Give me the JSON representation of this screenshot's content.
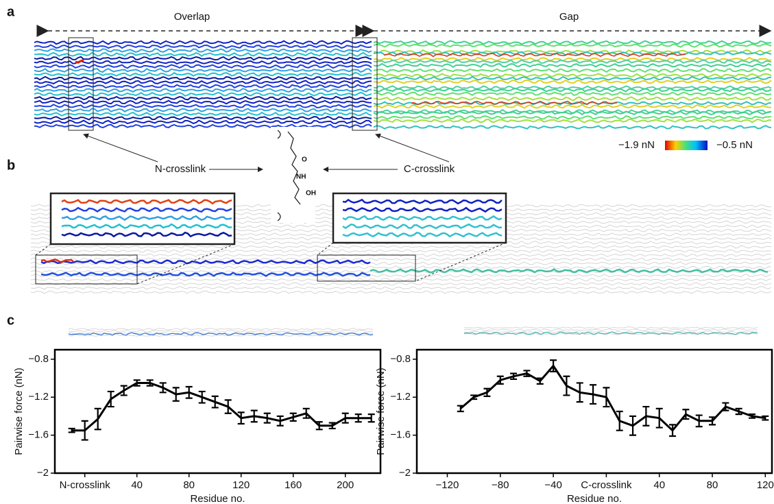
{
  "panels": {
    "a": "a",
    "b": "b",
    "c": "c"
  },
  "overlap": "Overlap",
  "gap": "Gap",
  "colorbar": {
    "min_label": "−1.9 nN",
    "max_label": "−0.5 nN"
  },
  "n_crosslink": "N-crosslink",
  "c_crosslink": "C-crosslink",
  "chemistry": {
    "o": "O",
    "nh": "NH",
    "oh": "OH"
  },
  "chart_data": [
    {
      "type": "line",
      "color": "#000000",
      "x": [
        -10,
        0,
        10,
        20,
        30,
        40,
        50,
        60,
        70,
        80,
        90,
        100,
        110,
        120,
        130,
        140,
        150,
        160,
        170,
        180,
        190,
        200,
        210,
        220
      ],
      "values": [
        -1.55,
        -1.55,
        -1.43,
        -1.22,
        -1.13,
        -1.05,
        -1.05,
        -1.1,
        -1.17,
        -1.15,
        -1.2,
        -1.25,
        -1.3,
        -1.42,
        -1.4,
        -1.42,
        -1.45,
        -1.41,
        -1.37,
        -1.5,
        -1.5,
        -1.42,
        -1.42,
        -1.42
      ],
      "errors": [
        0.02,
        0.1,
        0.11,
        0.08,
        0.05,
        0.03,
        0.03,
        0.05,
        0.07,
        0.06,
        0.06,
        0.06,
        0.07,
        0.06,
        0.06,
        0.05,
        0.05,
        0.04,
        0.05,
        0.04,
        0.03,
        0.05,
        0.04,
        0.04
      ],
      "xlim": [
        -23,
        227
      ],
      "ylim": [
        -2,
        -0.7
      ],
      "xticks": [
        {
          "value": 0,
          "label": "N-crosslink"
        },
        40,
        80,
        120,
        160,
        200
      ],
      "yticks": [
        {
          "value": -0.8,
          "label": "−0.8"
        },
        {
          "value": -1.2,
          "label": "−1.2"
        },
        {
          "value": -1.6,
          "label": "−1.6"
        },
        {
          "value": -2,
          "label": "−2"
        }
      ],
      "xlabel": "Residue no.",
      "ylabel": "Pairwise force (nN)"
    },
    {
      "type": "line",
      "color": "#000000",
      "x": [
        -110,
        -100,
        -90,
        -80,
        -70,
        -60,
        -50,
        -40,
        -30,
        -20,
        -10,
        0,
        10,
        20,
        30,
        40,
        50,
        60,
        70,
        80,
        90,
        100,
        110,
        120
      ],
      "values": [
        -1.32,
        -1.2,
        -1.15,
        -1.02,
        -0.98,
        -0.95,
        -1.03,
        -0.87,
        -1.08,
        -1.15,
        -1.17,
        -1.2,
        -1.45,
        -1.5,
        -1.4,
        -1.42,
        -1.55,
        -1.38,
        -1.45,
        -1.45,
        -1.3,
        -1.35,
        -1.4,
        -1.42
      ],
      "errors": [
        0.03,
        0.02,
        0.04,
        0.04,
        0.03,
        0.03,
        0.03,
        0.06,
        0.1,
        0.1,
        0.1,
        0.1,
        0.1,
        0.1,
        0.1,
        0.1,
        0.06,
        0.05,
        0.06,
        0.04,
        0.04,
        0.03,
        0.02,
        0.02
      ],
      "xlim": [
        -143,
        125
      ],
      "ylim": [
        -2,
        -0.7
      ],
      "xticks": [
        {
          "value": -120,
          "label": "−120"
        },
        {
          "value": -80,
          "label": "−80"
        },
        {
          "value": -40,
          "label": "−40"
        },
        {
          "value": 0,
          "label": "C-crosslink"
        },
        40,
        80,
        120
      ],
      "yticks": [
        {
          "value": -0.8,
          "label": "−0.8"
        },
        {
          "value": -1.2,
          "label": "−1.2"
        },
        {
          "value": -1.6,
          "label": "−1.6"
        },
        {
          "value": -2,
          "label": "−2"
        }
      ],
      "xlabel": "Residue no.",
      "ylabel": "Pairwise force (nN)"
    }
  ]
}
